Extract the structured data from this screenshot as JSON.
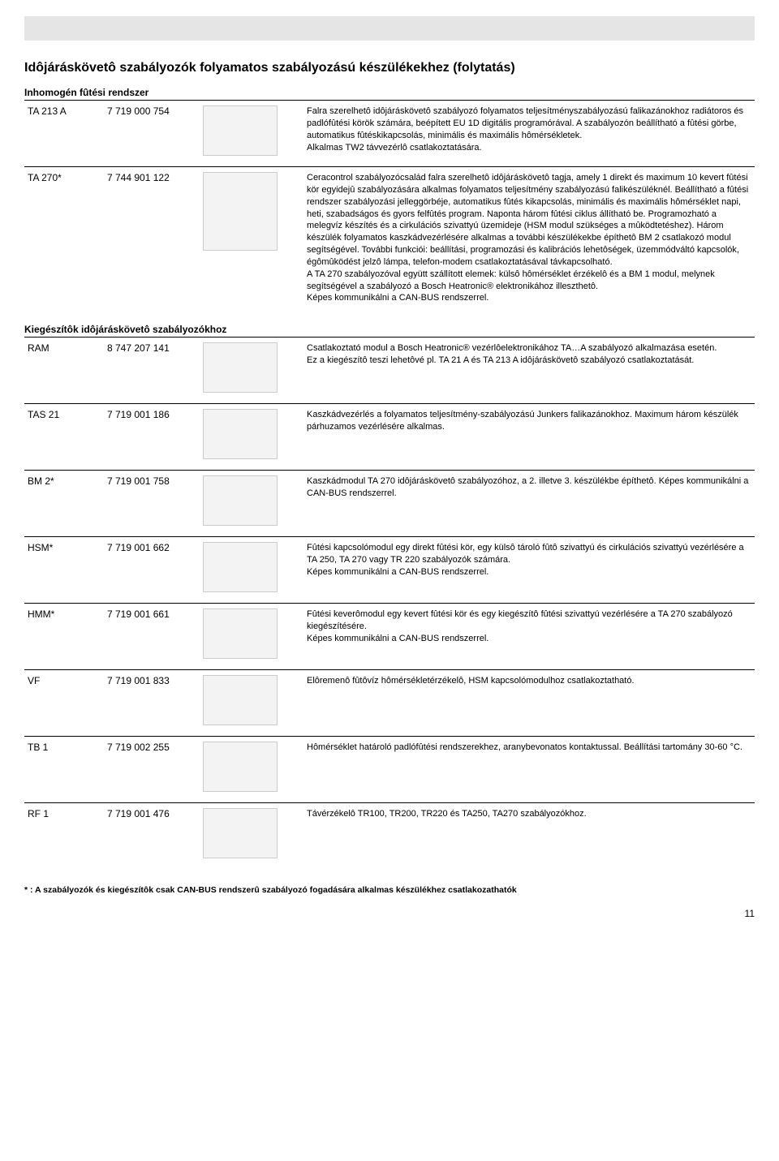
{
  "page_number": "11",
  "header_title": "Idôjáráskövetô szabályozók folyamatos szabályozású készülékekhez (folytatás)",
  "section1_title": "Inhomogén fûtési rendszer",
  "section2_title": "Kiegészítôk idôjáráskövetô szabályozókhoz",
  "rows1": [
    {
      "name": "TA 213 A",
      "part": "7 719 000 754",
      "desc": "Falra szerelhetô idôjáráskövetô szabályozó folyamatos teljesítményszabályozású falikazánokhoz radiátoros és padlófûtési körök számára, beépített EU 1D digitális programórával. A szabályozón beállítható a fûtési görbe, automatikus fûtéskikapcsolás, minimális és maximális hômérsékletek.\nAlkalmas TW2 távvezérlô csatlakoztatására."
    },
    {
      "name": "TA 270*",
      "part": "7 744 901 122",
      "desc": "Ceracontrol szabályozócsalád falra szerelhetô idôjáráskövetô tagja, amely 1 direkt és maximum 10 kevert fûtési kör egyidejû szabályozására alkalmas folyamatos teljesítmény szabályozású falikészüléknél. Beállítható a fûtési rendszer szabályozási jelleggörbéje, automatikus fûtés kikapcsolás, minimális és maximális hômérséklet napi, heti, szabadságos és gyors felfûtés program. Naponta három fûtési ciklus állítható be. Programozható a melegvíz készítés és a cirkulációs szivattyú üzemideje (HSM modul szükséges a mûködtetéshez). Három készülék folyamatos kaszkádvezérlésére alkalmas a további készülékekbe építhetô BM 2 csatlakozó modul segítségével. További funkciói: beállítási, programozási és kalibrációs lehetôségek, üzemmódváltó kapcsolók, égômûködést jelzô lámpa, telefon-modem csatlakoztatásával távkapcsolható.\nA TA 270 szabályozóval együtt szállított elemek: külsô hômérséklet érzékelô és a BM 1 modul, melynek segítségével a szabályozó a Bosch Heatronic® elektronikához illeszthetô.\nKépes kommunikálni a CAN-BUS rendszerrel."
    }
  ],
  "rows2": [
    {
      "name": "RAM",
      "part": "8 747 207 141",
      "desc": "Csatlakoztató modul a Bosch Heatronic® vezérlôelektronikához TA…A szabályozó alkalmazása esetén.\nEz a kiegészítô teszi lehetôvé pl. TA 21 A és TA 213 A idôjáráskövetô szabályozó csatlakoztatását."
    },
    {
      "name": "TAS 21",
      "part": "7 719 001 186",
      "desc": "Kaszkádvezérlés a folyamatos teljesítmény-szabályozású Junkers falikazánokhoz. Maximum három készülék párhuzamos vezérlésére alkalmas."
    },
    {
      "name": "BM 2*",
      "part": "7 719 001 758",
      "desc": "Kaszkádmodul TA 270 idôjáráskövetô szabályozóhoz, a 2. illetve 3. készülékbe építhetô. Képes kommunikálni a CAN-BUS rendszerrel."
    },
    {
      "name": "HSM*",
      "part": "7 719 001 662",
      "desc": "Fûtési kapcsolómodul egy direkt fûtési kör, egy külsô tároló fûtô szivattyú és cirkulációs szivattyú vezérlésére a TA 250, TA 270 vagy TR 220 szabályozók számára.\nKépes kommunikálni a CAN-BUS rendszerrel."
    },
    {
      "name": "HMM*",
      "part": "7 719 001 661",
      "desc": "Fûtési keverômodul egy kevert fûtési kör és egy kiegészítô fûtési szivattyú vezérlésére a TA 270 szabályozó kiegészítésére.\nKépes kommunikálni a CAN-BUS rendszerrel."
    },
    {
      "name": "VF",
      "part": "7 719 001 833",
      "desc": "Elôremenô fûtôvíz hômérsékletérzékelô, HSM kapcsolómodulhoz csatlakoztatható."
    },
    {
      "name": "TB 1",
      "part": "7 719 002 255",
      "desc": "Hômérséklet határoló padlófûtési rendszerekhez, aranybevonatos kontaktussal. Beállítási tartomány 30-60 °C."
    },
    {
      "name": "RF 1",
      "part": "7 719 001 476",
      "desc": "Távérzékelô TR100, TR200, TR220 és TA250, TA270 szabályozókhoz."
    }
  ],
  "footnote": "* :  A szabályozók és kiegészítôk csak CAN-BUS rendszerû szabályozó fogadására alkalmas készülékhez csatlakozathatók"
}
